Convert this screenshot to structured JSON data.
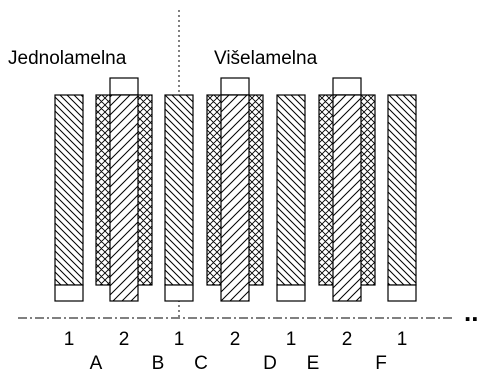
{
  "diagram": {
    "titles": {
      "left": "Jednolamelna",
      "right": "Višelamelna"
    },
    "plate_numbers": [
      "1",
      "2",
      "1",
      "2",
      "1",
      "2",
      "1"
    ],
    "gap_letters": [
      "A",
      "B",
      "C",
      "D",
      "E",
      "F"
    ],
    "continuation": "..",
    "colors": {
      "line": "#000000",
      "background": "#ffffff"
    },
    "hatch_patterns": {
      "outer_plate": "diagonal-back-slash",
      "inner_core": "diagonal-forward-slash",
      "friction_lining": "crosshatch"
    }
  }
}
